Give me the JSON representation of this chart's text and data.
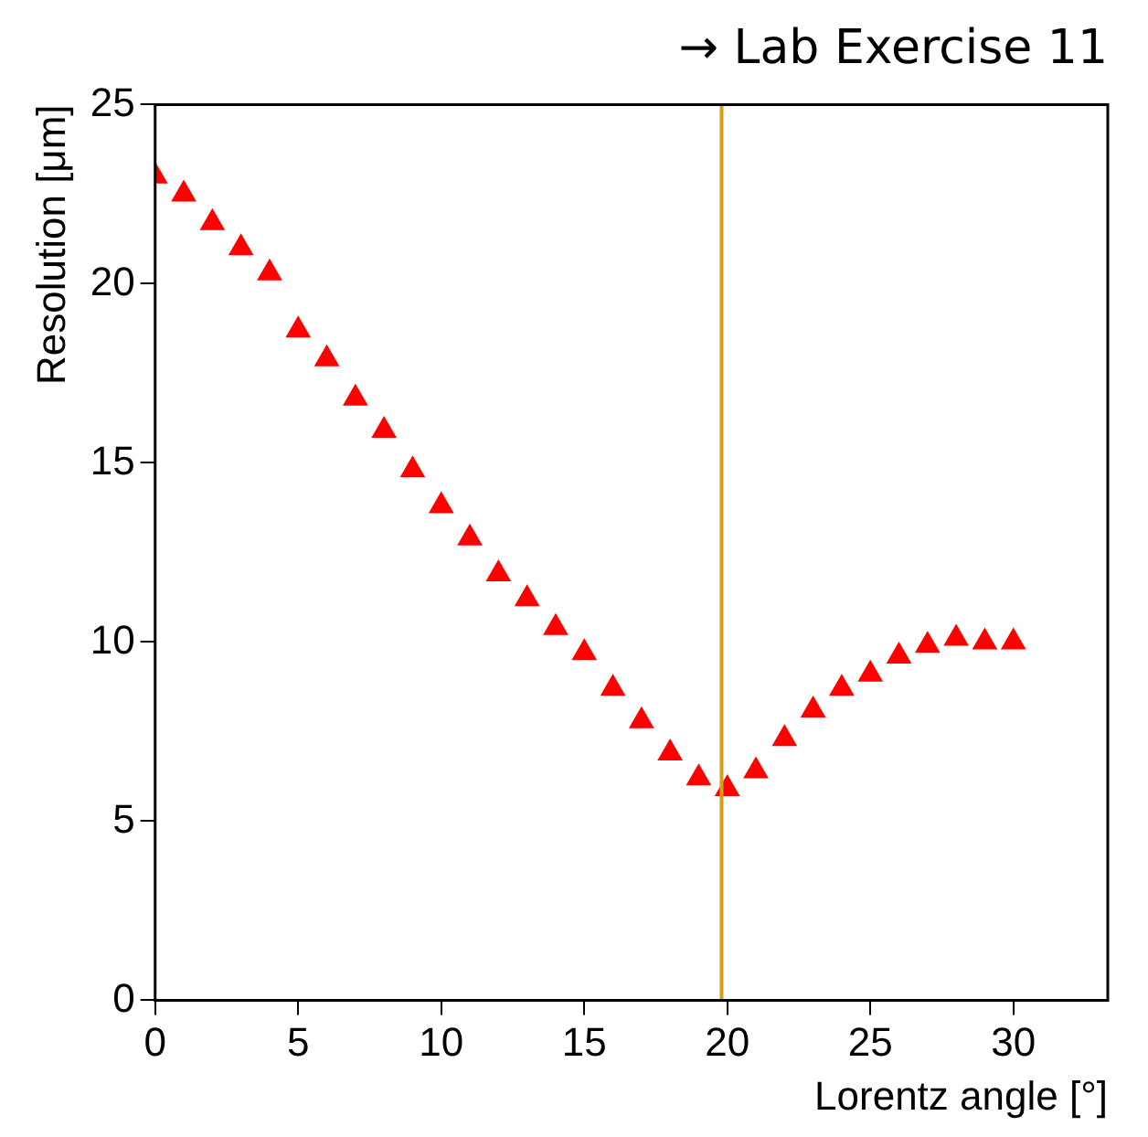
{
  "chart_data": {
    "type": "scatter",
    "title": "→ Lab Exercise 11",
    "xlabel": "Lorentz angle [°]",
    "ylabel": "Resolution [μm]",
    "x": [
      0,
      1,
      2,
      3,
      4,
      5,
      6,
      7,
      8,
      9,
      10,
      11,
      12,
      13,
      14,
      15,
      16,
      17,
      18,
      19,
      20,
      21,
      22,
      23,
      24,
      25,
      26,
      27,
      28,
      29,
      30
    ],
    "series": [
      {
        "color": "#ff0000",
        "values": [
          23.0,
          22.5,
          21.7,
          21.0,
          20.3,
          18.7,
          17.9,
          16.8,
          15.9,
          14.8,
          13.8,
          12.9,
          11.9,
          11.2,
          10.4,
          9.7,
          8.7,
          7.8,
          6.9,
          6.2,
          5.9,
          6.4,
          7.3,
          8.1,
          8.7,
          9.1,
          9.6,
          9.9,
          10.1,
          10.0,
          10.0
        ]
      }
    ],
    "xlim": [
      0,
      33.3
    ],
    "xticks": [
      0,
      5,
      10,
      15,
      20,
      25,
      30
    ],
    "ylim": [
      0,
      25
    ],
    "yticks": [
      0,
      5,
      10,
      15,
      20,
      25
    ],
    "ref_lines": [
      {
        "axis": "x",
        "value": 19.8,
        "color": "#d4a017"
      }
    ],
    "marker": "triangle",
    "grid": false,
    "legend": false
  }
}
